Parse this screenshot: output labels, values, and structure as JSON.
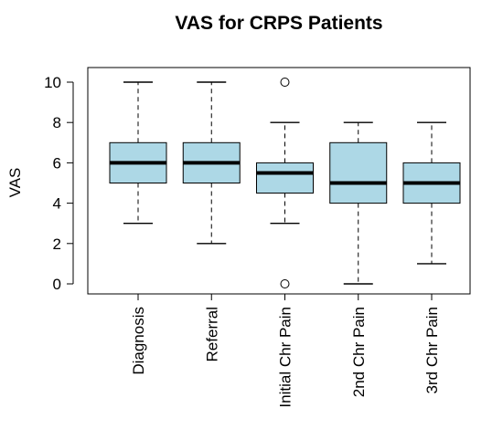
{
  "chart_data": {
    "type": "boxplot",
    "title": "VAS for CRPS Patients",
    "xlabel": "",
    "ylabel": "VAS",
    "ylim": [
      -0.4,
      10.4
    ],
    "yticks": [
      0,
      2,
      4,
      6,
      8,
      10
    ],
    "grid": false,
    "legend": "none",
    "box_fill": "#add8e6",
    "categories": [
      "Diagnosis",
      "Referral",
      "Initial Chr Pain",
      "2nd Chr Pain",
      "3rd Chr Pain"
    ],
    "boxes": [
      {
        "category": "Diagnosis",
        "whisker_low": 3,
        "q1": 5,
        "median": 6,
        "q3": 7,
        "whisker_high": 10,
        "outliers": []
      },
      {
        "category": "Referral",
        "whisker_low": 2,
        "q1": 5,
        "median": 6,
        "q3": 7,
        "whisker_high": 10,
        "outliers": []
      },
      {
        "category": "Initial Chr Pain",
        "whisker_low": 3,
        "q1": 4.5,
        "median": 5.5,
        "q3": 6,
        "whisker_high": 8,
        "outliers": [
          0,
          10
        ]
      },
      {
        "category": "2nd Chr Pain",
        "whisker_low": 0,
        "q1": 4,
        "median": 5,
        "q3": 7,
        "whisker_high": 8,
        "outliers": []
      },
      {
        "category": "3rd Chr Pain",
        "whisker_low": 1,
        "q1": 4,
        "median": 5,
        "q3": 6,
        "whisker_high": 8,
        "outliers": []
      }
    ]
  }
}
